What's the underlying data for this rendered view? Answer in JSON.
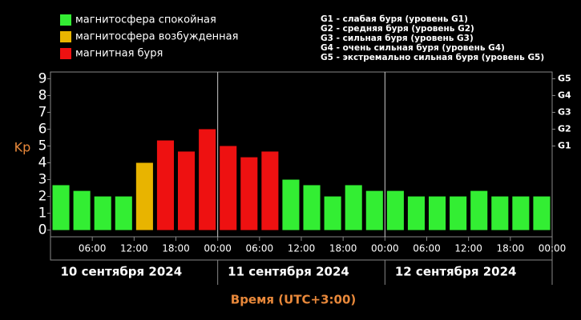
{
  "chart_data": {
    "type": "bar",
    "ylabel": "Kp",
    "xlabel": "Время (UTC+3:00)",
    "legend": [
      {
        "name": "магнитосфера спокойная",
        "color": "#33ee33"
      },
      {
        "name": "магнитосфера возбужденная",
        "color": "#e8b400"
      },
      {
        "name": "магнитная буря",
        "color": "#ee1111"
      }
    ],
    "storm_levels": [
      "G1 - слабая буря (уровень G1)",
      "G2 - средняя буря (уровень G2)",
      "G3 - сильная буря (уровень G3)",
      "G4 - очень сильная буря (уровень G4)",
      "G5 - экстремально сильная буря (уровень G5)"
    ],
    "values": [
      2.67,
      2.33,
      2,
      2,
      4,
      5.33,
      4.67,
      6,
      5,
      4.33,
      4.67,
      3,
      2.67,
      2,
      2.67,
      2.33,
      2.33,
      2,
      2,
      2,
      2.33,
      2,
      2,
      2
    ],
    "colors": [
      "#33ee33",
      "#33ee33",
      "#33ee33",
      "#33ee33",
      "#e8b400",
      "#ee1111",
      "#ee1111",
      "#ee1111",
      "#ee1111",
      "#ee1111",
      "#ee1111",
      "#33ee33",
      "#33ee33",
      "#33ee33",
      "#33ee33",
      "#33ee33",
      "#33ee33",
      "#33ee33",
      "#33ee33",
      "#33ee33",
      "#33ee33",
      "#33ee33",
      "#33ee33",
      "#33ee33"
    ],
    "xtick_labels": [
      "06:00",
      "12:00",
      "18:00",
      "00:00",
      "06:00",
      "12:00",
      "18:00",
      "00:00",
      "06:00",
      "12:00",
      "18:00",
      "00:00"
    ],
    "days": [
      "10 сентября 2024",
      "11 сентября 2024",
      "12 сентября 2024"
    ],
    "ylim": [
      -0.4,
      9.4
    ],
    "yticks": [
      0,
      1,
      2,
      3,
      4,
      5,
      6,
      7,
      8,
      9
    ],
    "y2ticks": [
      {
        "value": 5,
        "label": "G1"
      },
      {
        "value": 6,
        "label": "G2"
      },
      {
        "value": 7,
        "label": "G3"
      },
      {
        "value": 8,
        "label": "G4"
      },
      {
        "value": 9,
        "label": "G5"
      }
    ]
  }
}
